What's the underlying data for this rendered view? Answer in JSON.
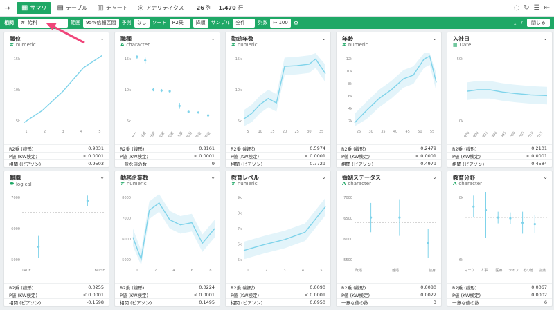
{
  "toolbar": {
    "tabs": [
      {
        "label": "サマリ",
        "icon": "summary-icon"
      },
      {
        "label": "テーブル",
        "icon": "table-icon"
      },
      {
        "label": "チャート",
        "icon": "chart-icon"
      },
      {
        "label": "アナリティクス",
        "icon": "bulb-icon"
      }
    ],
    "cols_value": "26",
    "cols_unit": "列",
    "rows_value": "1,470",
    "rows_unit": "行"
  },
  "filterbar": {
    "label": "相関",
    "target_prefix": "#",
    "target": "給料",
    "range_label": "範囲",
    "range_value": "95%信頼区間",
    "predict_label": "予測",
    "predict_value": "なし",
    "sort_label": "ソート",
    "sort_value": "R2乗",
    "sort_order": "降順",
    "sample_label": "サンプル",
    "sample_value": "全件",
    "cols_label": "列数",
    "cols_value": "↦ 100",
    "close_label": "閉じる"
  },
  "accent": "#1fa866",
  "cards": [
    {
      "title": "職位",
      "type": "numeric",
      "type_icon": "#",
      "stats": [
        [
          "R2乗 (線形)",
          "0.9031"
        ],
        [
          "P値 (KW検定)",
          "< 0.0001"
        ],
        [
          "相関 (ピアソン)",
          "0.9503"
        ]
      ],
      "yticks": [
        "15k",
        "10k",
        "5k"
      ],
      "xticks": [
        "1",
        "2",
        "3",
        "4",
        "5"
      ]
    },
    {
      "title": "職種",
      "type": "character",
      "type_icon": "A",
      "stats": [
        [
          "R2乗 (線形)",
          "0.8161"
        ],
        [
          "P値 (KW検定)",
          "< 0.0001"
        ],
        [
          "一意な値の数",
          "9"
        ]
      ],
      "yticks": [
        "15k",
        "10k",
        "5k"
      ],
      "xticks": [
        "マネージャー",
        "リサーチ責任者",
        "ヘルスケア代表",
        "製造責任者",
        "営業責任者",
        "人事",
        "営業担当",
        "研究者",
        "研究者"
      ]
    },
    {
      "title": "勤続年数",
      "type": "numeric",
      "type_icon": "#",
      "stats": [
        [
          "R2乗 (線形)",
          "0.5974"
        ],
        [
          "P値 (KW検定)",
          "< 0.0001"
        ],
        [
          "相関 (ピアソン)",
          "0.7729"
        ]
      ],
      "yticks": [
        "15k",
        "10k",
        "5k"
      ],
      "xticks": [
        "5",
        "10",
        "15",
        "20",
        "25",
        "30",
        "35"
      ]
    },
    {
      "title": "年齢",
      "type": "numeric",
      "type_icon": "#",
      "stats": [
        [
          "R2乗 (線形)",
          "0.2479"
        ],
        [
          "P値 (KW検定)",
          "< 0.0001"
        ],
        [
          "相関 (ピアソン)",
          "0.4979"
        ]
      ],
      "yticks": [
        "12k",
        "10k",
        "8k",
        "6k",
        "4k",
        "2k"
      ],
      "xticks": [
        "25",
        "30",
        "35",
        "40",
        "45",
        "50",
        "55"
      ]
    },
    {
      "title": "入社日",
      "type": "Date",
      "type_icon": "▦",
      "stats": [
        [
          "R2乗 (線形)",
          "0.2101"
        ],
        [
          "P値 (KW検定)",
          "< 0.0001"
        ],
        [
          "相関 (ピアソン)",
          "-0.4584"
        ]
      ],
      "yticks": [
        "50k",
        "0k"
      ],
      "xticks": [
        "1970",
        "1980",
        "1985",
        "1990",
        "1995",
        "2000",
        "2005",
        "2010",
        "2015"
      ]
    },
    {
      "title": "離職",
      "type": "logical",
      "type_icon": "⬬",
      "stats": [
        [
          "R2乗 (線形)",
          "0.0255"
        ],
        [
          "P値 (KW検定)",
          "< 0.0001"
        ],
        [
          "相関 (ピアソン)",
          "-0.1598"
        ]
      ],
      "yticks": [
        "7000",
        "6000",
        "5000"
      ],
      "xticks": [
        "TRUE",
        "FALSE"
      ]
    },
    {
      "title": "勤務企業数",
      "type": "numeric",
      "type_icon": "#",
      "stats": [
        [
          "R2乗 (線形)",
          "0.0224"
        ],
        [
          "P値 (KW検定)",
          "< 0.0001"
        ],
        [
          "相関 (ピアソン)",
          "0.1495"
        ]
      ],
      "yticks": [
        "8000",
        "7000",
        "6000",
        "5000"
      ],
      "xticks": [
        "0",
        "2",
        "4",
        "6",
        "8"
      ]
    },
    {
      "title": "教育レベル",
      "type": "numeric",
      "type_icon": "#",
      "stats": [
        [
          "R2乗 (線形)",
          "0.0090"
        ],
        [
          "P値 (KW検定)",
          "< 0.0001"
        ],
        [
          "相関 (ピアソン)",
          "0.0950"
        ]
      ],
      "yticks": [
        "9k",
        "8k",
        "7k",
        "6k",
        "5k"
      ],
      "xticks": [
        "1",
        "2",
        "3",
        "4",
        "5"
      ]
    },
    {
      "title": "婚姻ステータス",
      "type": "character",
      "type_icon": "A",
      "stats": [
        [
          "R2乗 (線形)",
          "0.0080"
        ],
        [
          "P値 (KW検定)",
          "0.0022"
        ],
        [
          "一意な値の数",
          "3"
        ]
      ],
      "yticks": [
        "7000",
        "6500",
        "6000",
        "5500"
      ],
      "xticks": [
        "既婚",
        "離婚",
        "独身"
      ]
    },
    {
      "title": "教育分野",
      "type": "character",
      "type_icon": "A",
      "stats": [
        [
          "R2乗 (線形)",
          "0.0067"
        ],
        [
          "P値 (KW検定)",
          "0.0002"
        ],
        [
          "一意な値の数",
          "6"
        ]
      ],
      "yticks": [
        "8k",
        "6k"
      ],
      "xticks": [
        "マーケ",
        "人事",
        "医療",
        "ライフ",
        "その他",
        "技術"
      ]
    }
  ]
}
